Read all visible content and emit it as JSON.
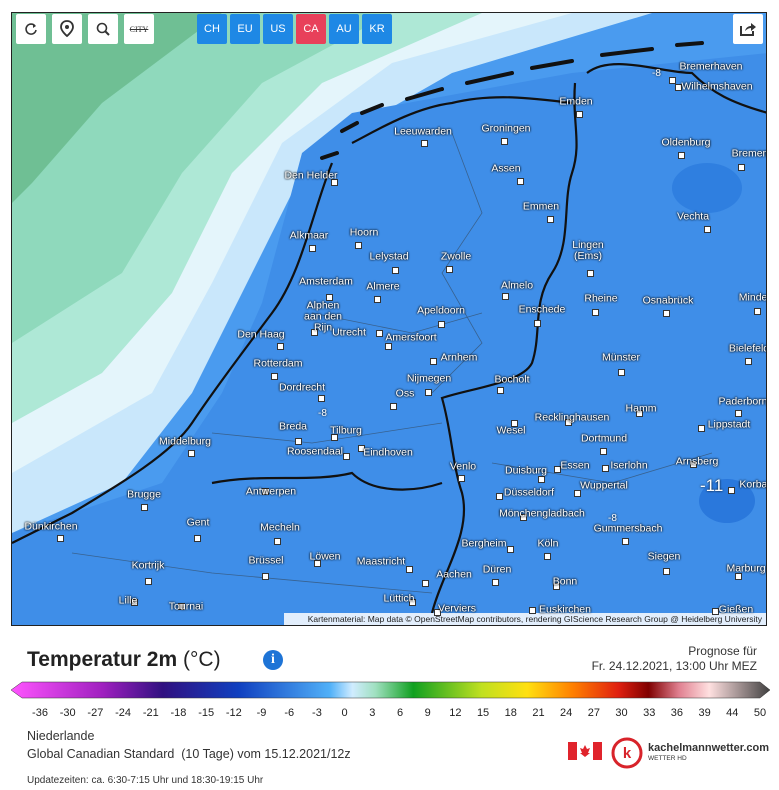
{
  "toolbar": {
    "city_toggle": "CITY",
    "regions": [
      "CH",
      "EU",
      "US",
      "CA",
      "AU",
      "KR"
    ]
  },
  "map": {
    "cities": [
      "Bremerhaven",
      "Wilhelmshaven",
      "Emden",
      "Leeuwarden",
      "Groningen",
      "Oldenburg",
      "Bremen",
      "Den Helder",
      "Assen",
      "Emmen",
      "Vechta",
      "Alkmaar",
      "Hoorn",
      "Lelystad",
      "Zwolle",
      "Lingen\n(Ems)",
      "Amsterdam",
      "Almere",
      "Almelo",
      "Rheine",
      "Osnabrück",
      "Minden",
      "Alphen\naan den\nRijn",
      "Utrecht",
      "Apeldoorn",
      "Enschede",
      "Amersfoort",
      "Den Haag",
      "Bielefeld",
      "Rotterdam",
      "Arnhem",
      "Münster",
      "Nijmegen",
      "Bocholt",
      "Dordrecht",
      "Oss",
      "Paderborn",
      "Hamm",
      "Recklinghausen",
      "Breda",
      "Tilburg",
      "Wesel",
      "Lippstadt",
      "Dortmund",
      "Middelburg",
      "Roosendaal",
      "Eindhoven",
      "Arnsberg",
      "Venlo",
      "Iserlohn",
      "Duisburg",
      "Essen",
      "Antwerpen",
      "Wuppertal",
      "Düsseldorf",
      "Brugge",
      "Korbac",
      "Mönchengladbach",
      "Dünkirchen",
      "Gent",
      "Mecheln",
      "Gummersbach",
      "Bergheim",
      "Köln",
      "Kortrijk",
      "Brüssel",
      "Löwen",
      "Maastricht",
      "Düren",
      "Siegen",
      "Marburg",
      "Aachen",
      "Bonn",
      "Lille",
      "Tournai",
      "Lüttich",
      "Verviers",
      "Euskirchen",
      "Gießen"
    ],
    "isotherm_labels": [
      -8,
      -8,
      -8,
      -11
    ],
    "attribution": "Kartenmaterial: Map data © OpenStreetMap contributors, rendering GIScience Research Group @ Heidelberg University"
  },
  "legend": {
    "title": "Temperatur 2m",
    "unit": "(°C)",
    "forecast_label": "Prognose für",
    "forecast_time": "Fr. 24.12.2021, 13:00 Uhr MEZ",
    "ticks": [
      -36,
      -30,
      -27,
      -24,
      -21,
      -18,
      -15,
      -12,
      -9,
      -6,
      -3,
      0,
      3,
      6,
      9,
      12,
      15,
      18,
      21,
      24,
      27,
      30,
      33,
      36,
      39,
      44,
      50
    ]
  },
  "footer": {
    "region": "Niederlande",
    "model": "Global Canadian Standard  (10 Tage) vom 15.12.2021/12z",
    "updates": "Updatezeiten: ca. 6:30-7:15 Uhr und 18:30-19:15 Uhr",
    "brand": "kachelmannwetter.com",
    "brand_sub": "WETTER HD"
  }
}
